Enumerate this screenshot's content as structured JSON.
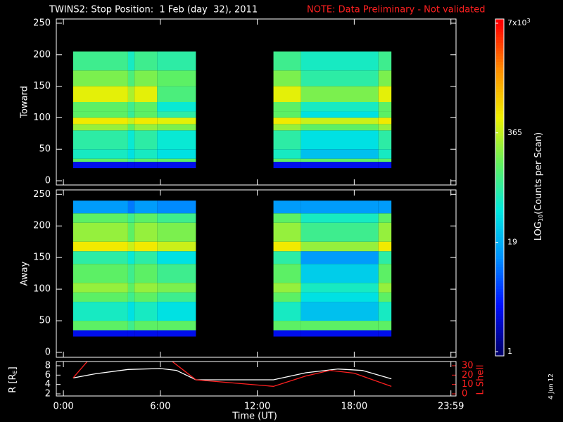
{
  "chart_data": [
    {
      "type": "heatmap",
      "title": "TWINS2: Stop Position:  1 Feb (day  32), 2011",
      "subtitle": "NOTE: Data Preliminary - Not validated",
      "ylabel": "Toward",
      "xlim": [
        -0.44,
        24.3
      ],
      "ylim": [
        -6.7,
        256.7
      ],
      "yticks": [
        0,
        50,
        100,
        150,
        200,
        250
      ],
      "x_edges": [
        0.6,
        4.0,
        4.4,
        5.8,
        8.2,
        13.0,
        14.7,
        19.5,
        20.3
      ],
      "y_edges": [
        20,
        30,
        35,
        50,
        80,
        90,
        100,
        110,
        125,
        150,
        175,
        205
      ],
      "z": [
        [
          3,
          150,
          60,
          80,
          250,
          600,
          150,
          150,
          500,
          200,
          100
        ],
        [
          3,
          100,
          40,
          50,
          150,
          400,
          90,
          100,
          300,
          120,
          60
        ],
        [
          3,
          150,
          60,
          80,
          250,
          600,
          150,
          150,
          500,
          200,
          100
        ],
        [
          3,
          150,
          40,
          50,
          200,
          500,
          80,
          50,
          120,
          150,
          80
        ],
        null,
        [
          3,
          150,
          60,
          80,
          250,
          600,
          150,
          150,
          500,
          200,
          100
        ],
        [
          3,
          150,
          25,
          40,
          150,
          400,
          40,
          60,
          200,
          80,
          60
        ],
        [
          3,
          150,
          60,
          80,
          250,
          600,
          150,
          150,
          500,
          200,
          100
        ]
      ]
    },
    {
      "type": "heatmap",
      "ylabel": "Away",
      "xlim": [
        -0.44,
        24.3
      ],
      "ylim": [
        -7.8,
        257
      ],
      "yticks": [
        0,
        50,
        100,
        150,
        200,
        250
      ],
      "x_edges": [
        0.6,
        4.0,
        4.4,
        5.8,
        8.2,
        13.0,
        14.7,
        19.5,
        20.3
      ],
      "y_edges": [
        25,
        35,
        50,
        80,
        95,
        110,
        140,
        160,
        175,
        205,
        220,
        240
      ],
      "z": [
        [
          3,
          150,
          60,
          150,
          250,
          150,
          80,
          600,
          250,
          150,
          15
        ],
        [
          3,
          100,
          40,
          100,
          150,
          100,
          50,
          400,
          150,
          100,
          10
        ],
        [
          3,
          150,
          60,
          150,
          250,
          150,
          80,
          600,
          250,
          150,
          15
        ],
        [
          3,
          150,
          40,
          100,
          200,
          100,
          40,
          400,
          200,
          100,
          12
        ],
        null,
        [
          3,
          150,
          60,
          150,
          250,
          150,
          80,
          600,
          250,
          150,
          15
        ],
        [
          3,
          150,
          25,
          40,
          60,
          30,
          15,
          250,
          100,
          60,
          15
        ],
        [
          3,
          150,
          60,
          150,
          250,
          150,
          80,
          600,
          250,
          150,
          15
        ]
      ]
    },
    {
      "type": "line",
      "xlabel": "Time (UT)",
      "ylabel": [
        "R [R",
        "E",
        "]"
      ],
      "y2label": "L Shell",
      "xlim": [
        -0.44,
        24.3
      ],
      "ylim": [
        1.55,
        8.9
      ],
      "y2lim": [
        -2.25,
        34.5
      ],
      "xticks": [
        {
          "value": 0,
          "label": "0:00"
        },
        {
          "value": 6,
          "label": "6:00"
        },
        {
          "value": 12,
          "label": "12:00"
        },
        {
          "value": 18,
          "label": "18:00"
        },
        {
          "value": 23.983,
          "label": "23:59"
        }
      ],
      "yticks": [
        2,
        4,
        6,
        8
      ],
      "y2ticks": [
        0,
        10,
        20,
        30
      ],
      "series": [
        {
          "name": "R",
          "color": "#ffffff",
          "x": [
            0.6,
            2,
            4,
            6,
            7,
            8.2,
            13,
            15,
            17,
            18.5,
            20.3
          ],
          "values": [
            5.4,
            6.3,
            7.2,
            7.4,
            7.0,
            5.0,
            5.0,
            6.5,
            7.3,
            7.0,
            5.2
          ]
        },
        {
          "name": "L Shell",
          "color": "#ff2020",
          "axis": "y2",
          "x": [
            0.6,
            1.5,
            4,
            6.7,
            8.2,
            13,
            15,
            16.5,
            18,
            20.3
          ],
          "values": [
            17,
            35,
            null,
            35,
            15,
            8,
            19,
            25,
            22,
            8
          ]
        }
      ]
    }
  ],
  "colorbar": {
    "label": [
      "LOG",
      "10",
      "(Counts per Scan)"
    ],
    "lim": [
      1,
      7000
    ],
    "log": true,
    "ticks": [
      1,
      19,
      365,
      {
        "value": 7000,
        "label": "7x10"
      }
    ],
    "top_exponent": "3",
    "colormap": [
      "#000070",
      "#0010ff",
      "#0090ff",
      "#00e8e0",
      "#60f060",
      "#f0f000",
      "#ff9000",
      "#ff0000"
    ]
  },
  "date_stamp": "4 Jun 12"
}
